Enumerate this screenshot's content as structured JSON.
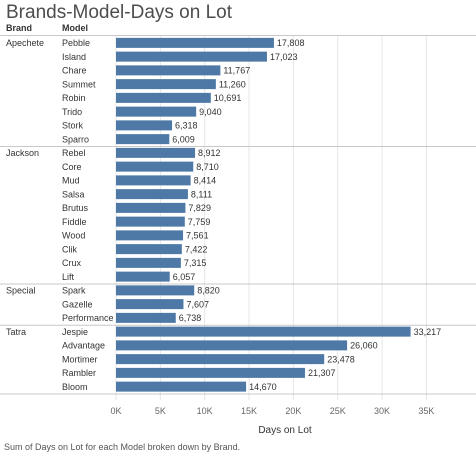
{
  "title": "Brands-Model-Days on Lot",
  "caption": "Sum of Days on Lot for each Model broken down by Brand.",
  "colors": {
    "bar": "#4e79a7",
    "grid": "#e6e6e6",
    "divider": "#c8c8c8",
    "text": "#333333"
  },
  "chart_data": {
    "type": "bar",
    "orientation": "horizontal",
    "column_headers": [
      "Brand",
      "Model"
    ],
    "xlabel": "Days on Lot",
    "xlim": [
      0,
      38000
    ],
    "xticks": [
      0,
      5000,
      10000,
      15000,
      20000,
      25000,
      30000,
      35000
    ],
    "xtick_labels": [
      "0K",
      "5K",
      "10K",
      "15K",
      "20K",
      "25K",
      "30K",
      "35K"
    ],
    "grid": true,
    "groups": [
      {
        "brand": "Apechete",
        "models": [
          "Pebble",
          "Island",
          "Chare",
          "Summet",
          "Robin",
          "Trido",
          "Stork",
          "Sparro"
        ],
        "values": [
          17808,
          17023,
          11767,
          11260,
          10691,
          9040,
          6318,
          6009
        ],
        "value_labels": [
          "17,808",
          "17,023",
          "11,767",
          "11,260",
          "10,691",
          "9,040",
          "6,318",
          "6,009"
        ]
      },
      {
        "brand": "Jackson",
        "models": [
          "Rebel",
          "Core",
          "Mud",
          "Salsa",
          "Brutus",
          "Fiddle",
          "Wood",
          "Clik",
          "Crux",
          "Lift"
        ],
        "values": [
          8912,
          8710,
          8414,
          8111,
          7829,
          7759,
          7561,
          7422,
          7315,
          6057
        ],
        "value_labels": [
          "8,912",
          "8,710",
          "8,414",
          "8,111",
          "7,829",
          "7,759",
          "7,561",
          "7,422",
          "7,315",
          "6,057"
        ]
      },
      {
        "brand": "Special",
        "models": [
          "Spark",
          "Gazelle",
          "Performance"
        ],
        "values": [
          8820,
          7607,
          6738
        ],
        "value_labels": [
          "8,820",
          "7,607",
          "6,738"
        ]
      },
      {
        "brand": "Tatra",
        "models": [
          "Jespie",
          "Advantage",
          "Mortimer",
          "Rambler",
          "Bloom"
        ],
        "values": [
          33217,
          26060,
          23478,
          21307,
          14670
        ],
        "value_labels": [
          "33,217",
          "26,060",
          "23,478",
          "21,307",
          "14,670"
        ]
      }
    ]
  }
}
